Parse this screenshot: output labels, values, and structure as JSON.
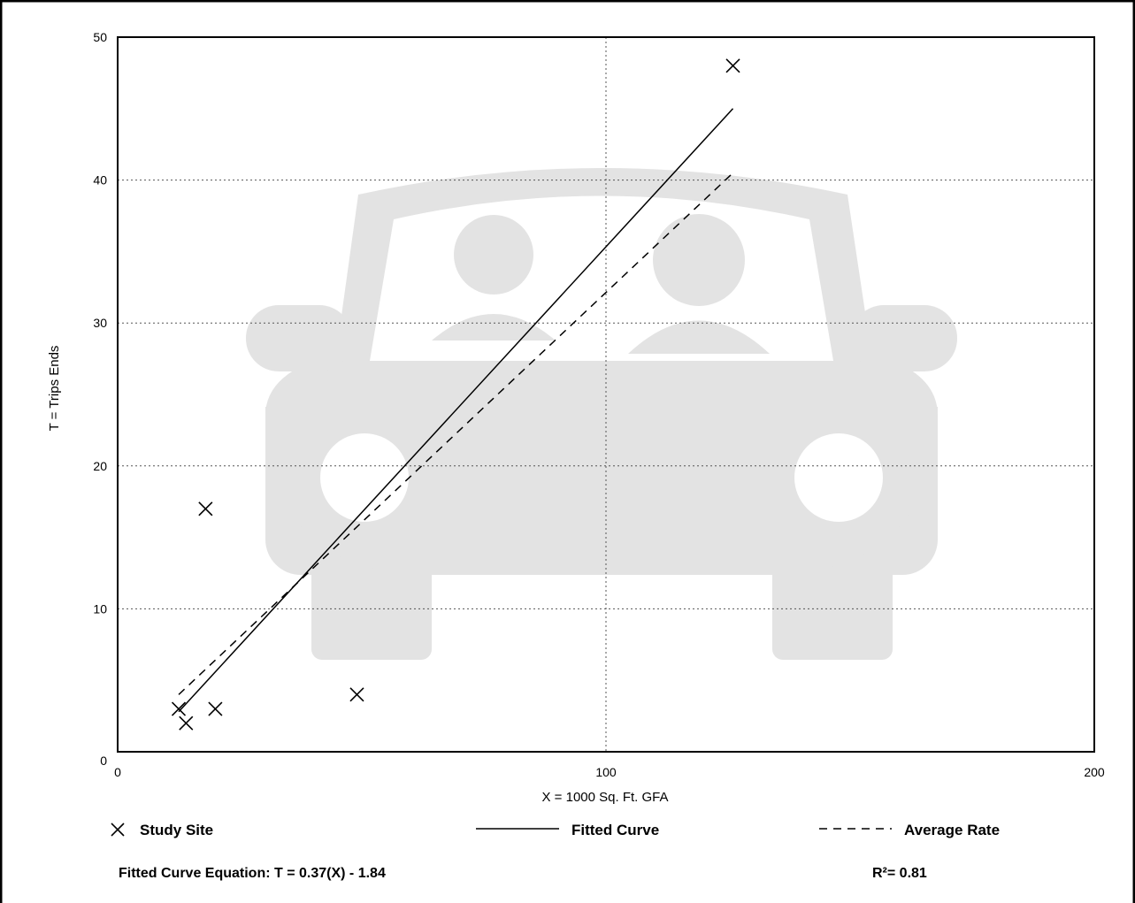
{
  "chart_data": {
    "type": "scatter",
    "title": "",
    "xlabel": "X = 1000 Sq. Ft. GFA",
    "ylabel": "T = Trips Ends",
    "xlim": [
      0,
      200
    ],
    "ylim": [
      0,
      50
    ],
    "x_ticks": [
      "0",
      "100",
      "200"
    ],
    "y_ticks": [
      "0",
      "10",
      "20",
      "30",
      "40",
      "50"
    ],
    "grid": "dotted",
    "background_icon": "car-with-driver-and-passenger",
    "series": [
      {
        "name": "Study Site",
        "marker": "x",
        "points": [
          [
            12.5,
            3.0
          ],
          [
            14,
            2.0
          ],
          [
            18,
            17.0
          ],
          [
            20,
            3.0
          ],
          [
            49,
            4.0
          ],
          [
            126,
            48.0
          ]
        ]
      },
      {
        "name": "Fitted Curve",
        "style": "solid",
        "line": [
          [
            12.5,
            2.8
          ],
          [
            126,
            45.0
          ]
        ]
      },
      {
        "name": "Average Rate",
        "style": "dashed",
        "line": [
          [
            12.5,
            4.0
          ],
          [
            126,
            40.5
          ]
        ]
      }
    ],
    "equation": "Fitted Curve Equation: T = 0.37(X) - 1.84",
    "r_squared": "R²= 0.81"
  },
  "legend": {
    "study_site": "Study Site",
    "fitted_curve": "Fitted Curve",
    "average_rate": "Average Rate"
  },
  "colors": {
    "frame": "#000000",
    "grid": "#555555",
    "background_icon": "#e3e3e3"
  }
}
